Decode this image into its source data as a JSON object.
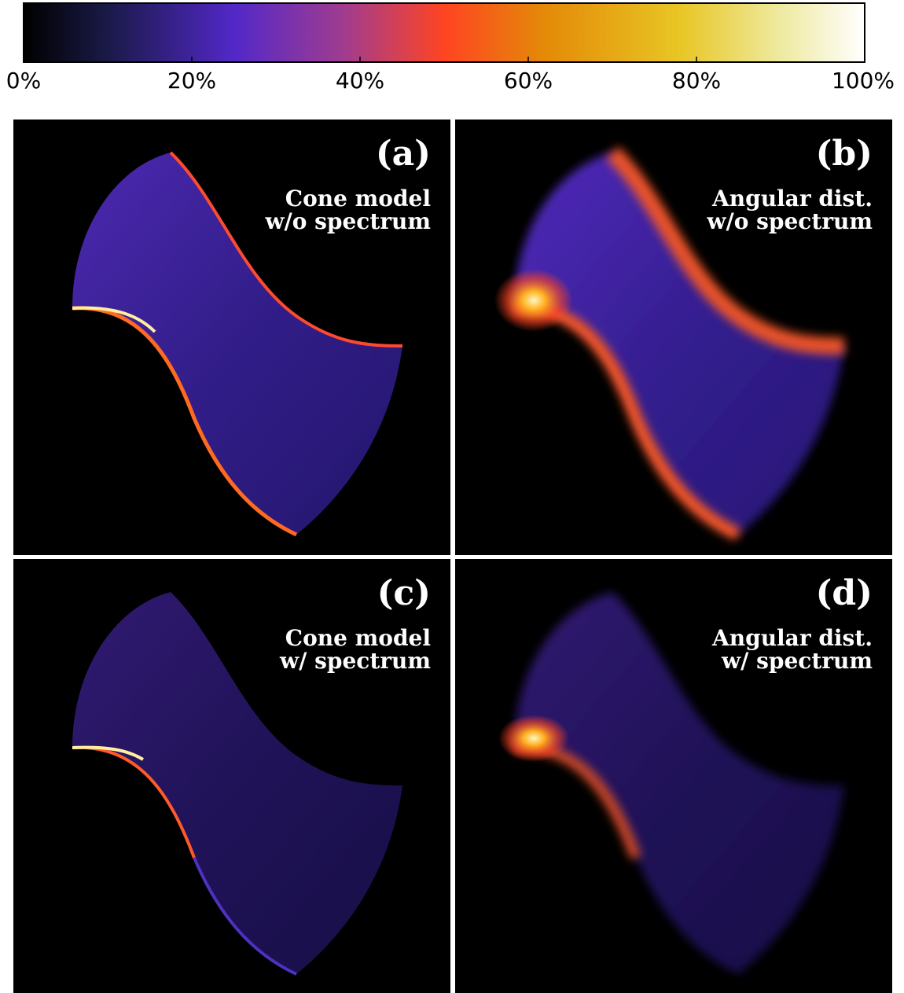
{
  "colorbar": {
    "lim": [
      0,
      100
    ],
    "ticks": [
      {
        "value": 0,
        "label": "0%"
      },
      {
        "value": 20,
        "label": "20%"
      },
      {
        "value": 40,
        "label": "40%"
      },
      {
        "value": 60,
        "label": "60%"
      },
      {
        "value": 80,
        "label": "80%"
      },
      {
        "value": 100,
        "label": "100%"
      }
    ],
    "stops": [
      {
        "at": 0,
        "color": "#000000"
      },
      {
        "at": 10,
        "color": "#1a1a48"
      },
      {
        "at": 25,
        "color": "#5228c8"
      },
      {
        "at": 38,
        "color": "#a03c90"
      },
      {
        "at": 50,
        "color": "#ff4422"
      },
      {
        "at": 62,
        "color": "#e48a08"
      },
      {
        "at": 78,
        "color": "#e8c624"
      },
      {
        "at": 90,
        "color": "#eeeaa0"
      },
      {
        "at": 100,
        "color": "#ffffff"
      }
    ]
  },
  "panels": [
    {
      "label": "(a)",
      "lines": [
        "Cone model",
        "w/o spectrum"
      ]
    },
    {
      "label": "(b)",
      "lines": [
        "Angular dist.",
        "w/o spectrum"
      ]
    },
    {
      "label": "(c)",
      "lines": [
        "Cone model",
        "w/ spectrum"
      ]
    },
    {
      "label": "(d)",
      "lines": [
        "Angular dist.",
        "w/ spectrum"
      ]
    }
  ]
}
